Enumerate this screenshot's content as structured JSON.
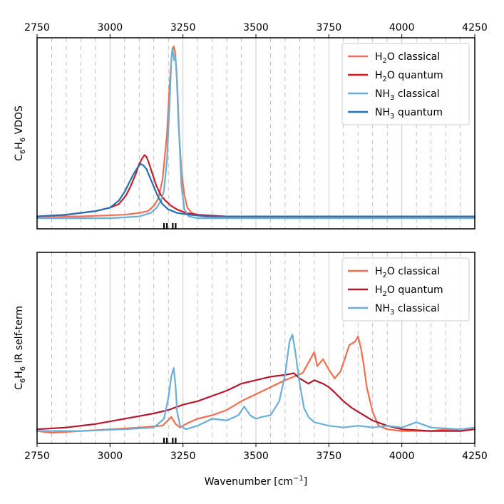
{
  "chart_data": [
    {
      "type": "line",
      "ylabel": "C6H6 VDOS",
      "ylabel_parts": {
        "a": "C",
        "sub1": "6",
        "b": "H",
        "sub2": "6",
        "rest": " VDOS"
      },
      "top_tick_labels": [
        "2750",
        "3000",
        "3250",
        "3500",
        "3750",
        "4000",
        "4250"
      ],
      "xlim": [
        2750,
        4250
      ],
      "ylim": [
        0,
        1
      ],
      "grid": "vertical lines (solid every 250, dashed every 50)",
      "legend_placement": "top-right",
      "markers_x": [
        3185,
        3195,
        3215,
        3225
      ],
      "series": [
        {
          "name": "H2O classical",
          "name_parts": [
            "H",
            "2",
            "O classical"
          ],
          "color": "#f46d4e",
          "x": [
            2750,
            2900,
            3050,
            3100,
            3130,
            3150,
            3165,
            3180,
            3195,
            3205,
            3212,
            3218,
            3223,
            3228,
            3235,
            3245,
            3255,
            3265,
            3280,
            3300,
            3350,
            4250
          ],
          "y": [
            0.03,
            0.03,
            0.04,
            0.05,
            0.06,
            0.09,
            0.13,
            0.24,
            0.5,
            0.8,
            0.96,
            1.0,
            0.97,
            0.85,
            0.55,
            0.28,
            0.15,
            0.08,
            0.05,
            0.04,
            0.03,
            0.03
          ]
        },
        {
          "name": "H2O quantum",
          "name_parts": [
            "H",
            "2",
            "O quantum"
          ],
          "color": "#c62026",
          "x": [
            2750,
            2850,
            2950,
            3000,
            3030,
            3055,
            3070,
            3080,
            3090,
            3100,
            3110,
            3118,
            3125,
            3132,
            3140,
            3150,
            3160,
            3175,
            3190,
            3210,
            3230,
            3260,
            3300,
            3400,
            4250
          ],
          "y": [
            0.03,
            0.04,
            0.06,
            0.08,
            0.1,
            0.15,
            0.2,
            0.24,
            0.28,
            0.33,
            0.36,
            0.38,
            0.37,
            0.34,
            0.3,
            0.25,
            0.2,
            0.15,
            0.12,
            0.09,
            0.07,
            0.05,
            0.04,
            0.03,
            0.03
          ]
        },
        {
          "name": "NH3 classical",
          "name_parts": [
            "NH",
            "3",
            " classical"
          ],
          "color": "#6baed6",
          "x": [
            2750,
            3000,
            3100,
            3140,
            3160,
            3175,
            3185,
            3195,
            3205,
            3210,
            3214,
            3220,
            3224,
            3230,
            3238,
            3245,
            3255,
            3270,
            3300,
            4250
          ],
          "y": [
            0.02,
            0.02,
            0.03,
            0.05,
            0.08,
            0.12,
            0.18,
            0.35,
            0.7,
            0.92,
            0.99,
            0.92,
            0.94,
            0.8,
            0.45,
            0.2,
            0.07,
            0.03,
            0.02,
            0.02
          ]
        },
        {
          "name": "NH3 quantum",
          "name_parts": [
            "NH",
            "3",
            " quantum"
          ],
          "color": "#2171b5",
          "x": [
            2750,
            2850,
            2950,
            3000,
            3030,
            3050,
            3065,
            3080,
            3095,
            3105,
            3115,
            3125,
            3135,
            3150,
            3165,
            3180,
            3200,
            3230,
            3270,
            3330,
            4250
          ],
          "y": [
            0.03,
            0.04,
            0.06,
            0.08,
            0.12,
            0.17,
            0.22,
            0.27,
            0.31,
            0.33,
            0.32,
            0.3,
            0.26,
            0.2,
            0.14,
            0.1,
            0.07,
            0.05,
            0.04,
            0.03,
            0.03
          ]
        }
      ]
    },
    {
      "type": "line",
      "ylabel": "C6H6 IR self-term",
      "ylabel_parts": {
        "a": "C",
        "sub1": "6",
        "b": "H",
        "sub2": "6",
        "rest": " IR self-term"
      },
      "xlabel": "Wavenumber [cm−1]",
      "xlabel_parts": {
        "main": "Wavenumber [cm",
        "sup": "−1",
        "end": "]"
      },
      "bottom_tick_labels": [
        "2750",
        "3000",
        "3250",
        "3500",
        "3750",
        "4000",
        "4250"
      ],
      "xlim": [
        2750,
        4250
      ],
      "ylim": [
        0,
        1
      ],
      "grid": "vertical lines (solid every 250, dashed every 50)",
      "legend_placement": "top-right",
      "markers_x": [
        3185,
        3195,
        3215,
        3225
      ],
      "series": [
        {
          "name": "H2O classical",
          "name_parts": [
            "H",
            "2",
            "O classical"
          ],
          "color": "#f46d4e",
          "x": [
            2750,
            2800,
            2900,
            3000,
            3100,
            3180,
            3210,
            3225,
            3240,
            3260,
            3300,
            3350,
            3400,
            3450,
            3500,
            3550,
            3600,
            3630,
            3660,
            3690,
            3700,
            3710,
            3730,
            3750,
            3770,
            3790,
            3800,
            3820,
            3840,
            3850,
            3860,
            3870,
            3880,
            3900,
            3920,
            3950,
            4000,
            4050,
            4100,
            4150,
            4200,
            4250
          ],
          "y": [
            0.03,
            0.02,
            0.03,
            0.04,
            0.05,
            0.06,
            0.11,
            0.07,
            0.05,
            0.07,
            0.1,
            0.12,
            0.15,
            0.2,
            0.24,
            0.28,
            0.32,
            0.34,
            0.36,
            0.45,
            0.48,
            0.4,
            0.44,
            0.38,
            0.33,
            0.37,
            0.42,
            0.52,
            0.54,
            0.57,
            0.5,
            0.4,
            0.28,
            0.14,
            0.06,
            0.04,
            0.03,
            0.03,
            0.03,
            0.04,
            0.03,
            0.04
          ]
        },
        {
          "name": "H2O quantum",
          "name_parts": [
            "H",
            "2",
            "O quantum"
          ],
          "color": "#b2182b",
          "x": [
            2750,
            2850,
            2950,
            3050,
            3150,
            3200,
            3250,
            3300,
            3350,
            3400,
            3450,
            3500,
            3550,
            3600,
            3630,
            3650,
            3680,
            3700,
            3730,
            3750,
            3770,
            3800,
            3830,
            3850,
            3900,
            3950,
            4000,
            4100,
            4200,
            4250
          ],
          "y": [
            0.04,
            0.05,
            0.07,
            0.1,
            0.13,
            0.15,
            0.18,
            0.2,
            0.23,
            0.26,
            0.3,
            0.32,
            0.34,
            0.35,
            0.36,
            0.33,
            0.3,
            0.32,
            0.3,
            0.28,
            0.25,
            0.2,
            0.16,
            0.14,
            0.09,
            0.06,
            0.04,
            0.03,
            0.03,
            0.04
          ]
        },
        {
          "name": "NH3 classical",
          "name_parts": [
            "NH",
            "3",
            " classical"
          ],
          "color": "#6baed6",
          "x": [
            2750,
            2900,
            3050,
            3150,
            3185,
            3200,
            3210,
            3218,
            3224,
            3230,
            3240,
            3260,
            3300,
            3350,
            3400,
            3440,
            3460,
            3480,
            3500,
            3520,
            3550,
            3580,
            3600,
            3615,
            3625,
            3635,
            3650,
            3665,
            3680,
            3700,
            3750,
            3800,
            3850,
            3900,
            3950,
            4000,
            4050,
            4100,
            4200,
            4250
          ],
          "y": [
            0.03,
            0.03,
            0.04,
            0.05,
            0.1,
            0.22,
            0.34,
            0.39,
            0.3,
            0.14,
            0.06,
            0.04,
            0.06,
            0.1,
            0.09,
            0.12,
            0.17,
            0.12,
            0.1,
            0.11,
            0.12,
            0.2,
            0.35,
            0.54,
            0.58,
            0.48,
            0.3,
            0.16,
            0.11,
            0.08,
            0.06,
            0.05,
            0.06,
            0.05,
            0.06,
            0.05,
            0.08,
            0.05,
            0.04,
            0.05
          ]
        }
      ]
    }
  ]
}
